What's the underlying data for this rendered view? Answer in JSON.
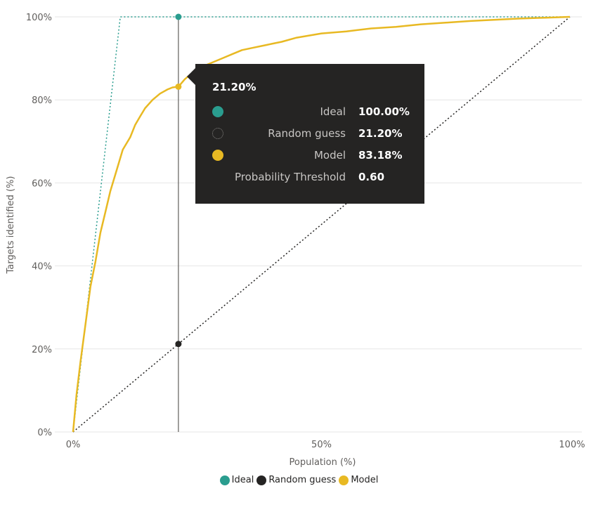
{
  "chart_data": {
    "type": "line",
    "xlabel": "Population (%)",
    "ylabel": "Targets identified (%)",
    "xlim": [
      0,
      100
    ],
    "ylim": [
      0,
      100
    ],
    "x_ticks": [
      "0%",
      "50%",
      "100%"
    ],
    "y_ticks": [
      "0%",
      "20%",
      "40%",
      "60%",
      "80%",
      "100%"
    ],
    "grid": true,
    "legend_position": "bottom-center",
    "series": [
      {
        "name": "Ideal",
        "color": "#2a9d8f",
        "style": "dotted",
        "x": [
          0,
          9.5,
          100
        ],
        "y": [
          0,
          100,
          100
        ]
      },
      {
        "name": "Random guess",
        "color": "#252423",
        "style": "dotted",
        "x": [
          0,
          100
        ],
        "y": [
          0,
          100
        ]
      },
      {
        "name": "Model",
        "color": "#e8b923",
        "style": "solid",
        "x": [
          0,
          0.7,
          1.5,
          2.5,
          3.5,
          4.5,
          5.5,
          6.5,
          7.5,
          8.5,
          10,
          11.5,
          12.5,
          13.5,
          14.5,
          16,
          17.5,
          19,
          20,
          21.2,
          22.5,
          24,
          26,
          28,
          30,
          32,
          34,
          36,
          38,
          40,
          42,
          45,
          50,
          55,
          60,
          65,
          70,
          75,
          80,
          85,
          90,
          95,
          100
        ],
        "y": [
          0,
          9,
          17,
          26,
          35,
          41,
          48,
          53,
          58,
          62,
          68,
          71,
          74,
          76,
          78,
          80,
          81.5,
          82.5,
          83,
          83.18,
          85,
          86.5,
          88,
          89,
          90,
          91,
          92,
          92.5,
          93,
          93.5,
          94,
          95,
          96,
          96.5,
          97.2,
          97.6,
          98.2,
          98.6,
          99,
          99.3,
          99.6,
          99.8,
          100
        ]
      }
    ],
    "crosshair": {
      "x": 21.2
    },
    "highlight_points": [
      {
        "series": "Ideal",
        "x": 21.2,
        "y": 100
      },
      {
        "series": "Random guess",
        "x": 21.2,
        "y": 21.2
      },
      {
        "series": "Model",
        "x": 21.2,
        "y": 83.18
      }
    ]
  },
  "tooltip": {
    "header": "21.20%",
    "rows": [
      {
        "name": "Ideal",
        "value": "100.00%",
        "icon": "teal-circle-icon",
        "color": "#2a9d8f"
      },
      {
        "name": "Random guess",
        "value": "21.20%",
        "icon": "dotted-circle-icon",
        "color": "#252423"
      },
      {
        "name": "Model",
        "value": "83.18%",
        "icon": "yellow-circle-icon",
        "color": "#e8b923"
      },
      {
        "name": "Probability Threshold",
        "value": "0.60",
        "icon": "",
        "color": ""
      }
    ]
  },
  "legend": {
    "items": [
      {
        "label": "Ideal",
        "color": "#2a9d8f"
      },
      {
        "label": "Random guess",
        "color": "#252423"
      },
      {
        "label": "Model",
        "color": "#e8b923"
      }
    ]
  }
}
